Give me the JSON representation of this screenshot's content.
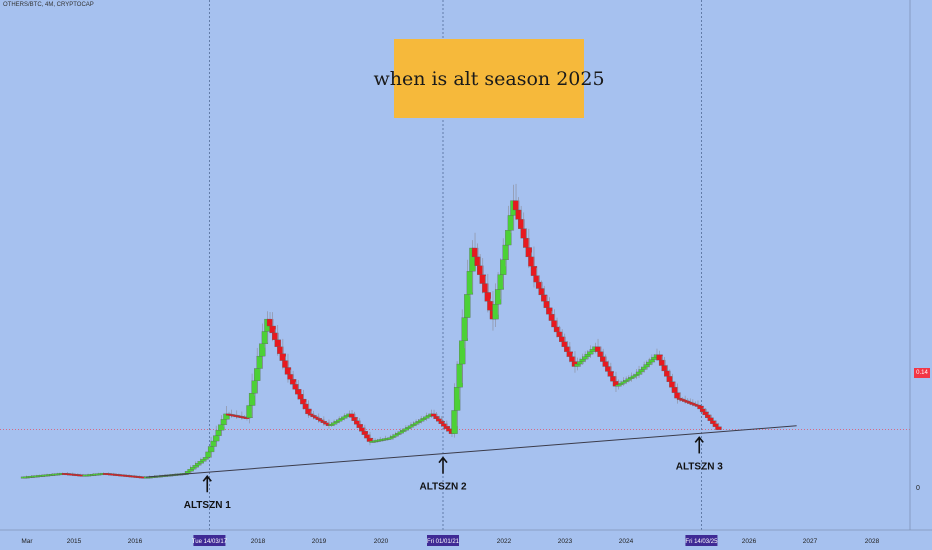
{
  "header": {
    "symbol": "OTHERS/BTC, 4M, CRYPTOCAP",
    "title": "when is alt season 2025"
  },
  "price_axis": {
    "current_price": "0.14",
    "zero_label": "0"
  },
  "time_axis": {
    "labels": [
      "Mar",
      "2015",
      "2016",
      "2017",
      "2018",
      "2019",
      "2020",
      "2021",
      "2022",
      "2023",
      "2024",
      "2025",
      "2026",
      "2027",
      "2028"
    ],
    "highlighted": [
      "Tue 14/03/17",
      "Fri 01/01/21",
      "Fri 14/03/25"
    ]
  },
  "annotations": [
    "ALTSZN 1",
    "ALTSZN 2",
    "ALTSZN 3"
  ],
  "colors": {
    "background": "#a6c1ef",
    "up": "#4cd136",
    "down": "#e8191f",
    "title_box": "#f6b93b",
    "highlight_label": "#3f2a95",
    "price_line": "#f23645"
  },
  "chart_data": {
    "type": "candlestick",
    "x": [
      "2014-03",
      "2014-07",
      "2014-11",
      "2015-03",
      "2015-07",
      "2015-11",
      "2016-03",
      "2016-07",
      "2016-11",
      "2017-03",
      "2017-07",
      "2017-11",
      "2018-03",
      "2018-07",
      "2018-11",
      "2019-03",
      "2019-07",
      "2019-11",
      "2020-03",
      "2020-07",
      "2020-11",
      "2021-03",
      "2021-07",
      "2021-11",
      "2022-03",
      "2022-07",
      "2022-11",
      "2023-03",
      "2023-07",
      "2023-11",
      "2024-03",
      "2024-07",
      "2024-11",
      "2025-03"
    ],
    "ohlc": [
      [
        0.02,
        0.03,
        0.015,
        0.025
      ],
      [
        0.025,
        0.035,
        0.02,
        0.03
      ],
      [
        0.03,
        0.04,
        0.02,
        0.025
      ],
      [
        0.025,
        0.035,
        0.02,
        0.03
      ],
      [
        0.03,
        0.035,
        0.02,
        0.025
      ],
      [
        0.025,
        0.03,
        0.015,
        0.02
      ],
      [
        0.02,
        0.03,
        0.015,
        0.025
      ],
      [
        0.025,
        0.03,
        0.02,
        0.03
      ],
      [
        0.03,
        0.08,
        0.025,
        0.07
      ],
      [
        0.07,
        0.2,
        0.06,
        0.18
      ],
      [
        0.18,
        0.22,
        0.15,
        0.17
      ],
      [
        0.17,
        0.44,
        0.15,
        0.42
      ],
      [
        0.42,
        0.46,
        0.25,
        0.28
      ],
      [
        0.28,
        0.3,
        0.17,
        0.18
      ],
      [
        0.18,
        0.2,
        0.13,
        0.15
      ],
      [
        0.15,
        0.19,
        0.14,
        0.18
      ],
      [
        0.18,
        0.19,
        0.1,
        0.11
      ],
      [
        0.11,
        0.13,
        0.09,
        0.12
      ],
      [
        0.12,
        0.16,
        0.11,
        0.15
      ],
      [
        0.15,
        0.2,
        0.14,
        0.18
      ],
      [
        0.18,
        0.2,
        0.12,
        0.13
      ],
      [
        0.13,
        0.62,
        0.12,
        0.6
      ],
      [
        0.6,
        0.65,
        0.38,
        0.42
      ],
      [
        0.42,
        0.76,
        0.4,
        0.72
      ],
      [
        0.72,
        0.78,
        0.5,
        0.53
      ],
      [
        0.53,
        0.55,
        0.39,
        0.4
      ],
      [
        0.4,
        0.43,
        0.28,
        0.3
      ],
      [
        0.3,
        0.36,
        0.26,
        0.35
      ],
      [
        0.35,
        0.37,
        0.23,
        0.25
      ],
      [
        0.25,
        0.3,
        0.22,
        0.28
      ],
      [
        0.28,
        0.35,
        0.26,
        0.33
      ],
      [
        0.33,
        0.34,
        0.2,
        0.22
      ],
      [
        0.22,
        0.24,
        0.17,
        0.2
      ],
      [
        0.2,
        0.2,
        0.14,
        0.14
      ]
    ],
    "trendline": {
      "x": [
        "2016-03",
        "2026-10"
      ],
      "y": [
        0.02,
        0.15
      ]
    },
    "vertical_markers": [
      "2017-03-14",
      "2021-01-01",
      "2025-03-14"
    ],
    "arrows": [
      {
        "label": "ALTSZN 1",
        "date": "2017-03"
      },
      {
        "label": "ALTSZN 2",
        "date": "2021-01"
      },
      {
        "label": "ALTSZN 3",
        "date": "2025-03"
      }
    ],
    "current_value": 0.14,
    "ylim": [
      -0.1,
      0.85
    ]
  }
}
